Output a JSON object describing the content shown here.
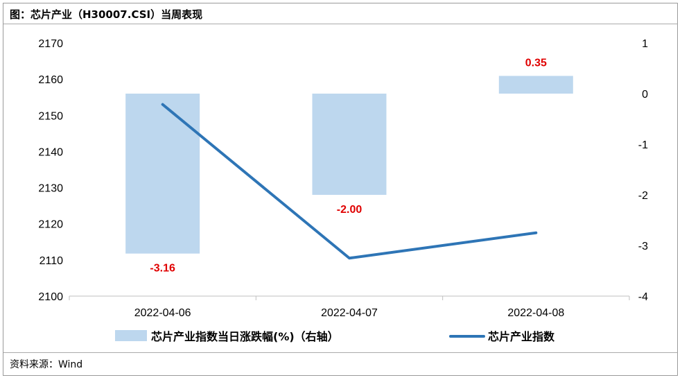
{
  "header": {
    "title": "图：芯片产业（H30007.CSI）当周表现"
  },
  "footer": {
    "source": "资料来源：Wind"
  },
  "chart_data": {
    "type": "bar+line",
    "categories": [
      "2022-04-06",
      "2022-04-07",
      "2022-04-08"
    ],
    "series": [
      {
        "name": "芯片产业指数当日涨跌幅(%)（右轴）",
        "type": "bar",
        "axis": "right",
        "values": [
          -3.16,
          -2.0,
          0.35
        ],
        "labels": [
          "-3.16",
          "-2.00",
          "0.35"
        ],
        "color": "#bdd7ee"
      },
      {
        "name": "芯片产业指数",
        "type": "line",
        "axis": "left",
        "values": [
          2153,
          2110.5,
          2117.5
        ],
        "color": "#2e75b6"
      }
    ],
    "y_left": {
      "min": 2100,
      "max": 2170,
      "ticks": [
        "2100",
        "2110",
        "2120",
        "2130",
        "2140",
        "2150",
        "2160",
        "2170"
      ]
    },
    "y_right": {
      "min": -4,
      "max": 1,
      "ticks": [
        "-4",
        "-3",
        "-2",
        "-1",
        "0",
        "1"
      ]
    },
    "data_label_color": "#e00000",
    "legend_position": "bottom",
    "grid": false
  }
}
